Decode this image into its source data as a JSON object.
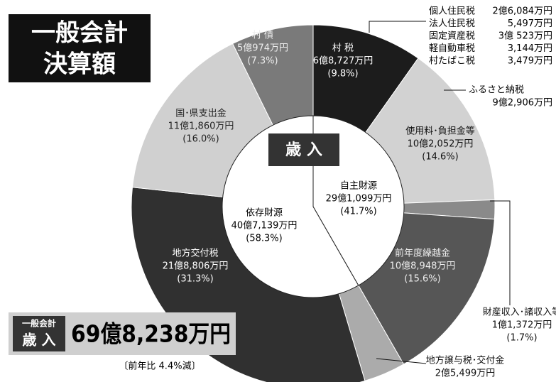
{
  "chart_data": {
    "type": "pie",
    "title_lines": [
      "一般会計",
      "決算額"
    ],
    "center_label": "歳 入",
    "categories": [
      "村 税",
      "使用料･負担金等",
      "財産収入･諸収入等",
      "前年度繰越金",
      "地方譲与税･交付金",
      "地方交付税",
      "国･県支出金",
      "村 債"
    ],
    "amounts": [
      "6億8,727万円",
      "10億2,052万円",
      "1億1,372万円",
      "10億8,948万円",
      "2億5,499万円",
      "21億8,806万円",
      "11億1,860万円",
      "5億974万円"
    ],
    "values": [
      9.8,
      14.6,
      1.7,
      15.6,
      3.7,
      31.3,
      16.0,
      7.3
    ],
    "value_labels": [
      "(9.8%)",
      "(14.6%)",
      "(1.7%)",
      "(15.6%)",
      null,
      "(31.3%)",
      "(16.0%)",
      "(7.3%)"
    ],
    "colors": [
      "#1c1c1c",
      "#d2d2d2",
      "#8a8a8a",
      "#565656",
      "#ababab",
      "#303030",
      "#d0d0d0",
      "#7a7a7a"
    ],
    "inner": {
      "categories": [
        "自主財源",
        "依存財源"
      ],
      "amounts": [
        "29億1,099万円",
        "40億7,139万円"
      ],
      "values": [
        41.7,
        58.3
      ],
      "value_labels": [
        "(41.7%)",
        "(58.3%)"
      ]
    },
    "tax_breakdown": [
      [
        "個人住民税",
        "2億6,084万円"
      ],
      [
        "法人住民税",
        "5,497万円"
      ],
      [
        "固定資産税",
        "3億 523万円"
      ],
      [
        "軽自動車税",
        "3,144万円"
      ],
      [
        "村たばこ税",
        "3,479万円"
      ]
    ],
    "furusato": {
      "label": "ふるさと納税",
      "amount": "9億2,906万円"
    },
    "total": {
      "tag1": "一般会計",
      "tag2": "歳 入",
      "amount": "69億8,238万円",
      "note": "〔前年比 4.4%減〕"
    }
  }
}
